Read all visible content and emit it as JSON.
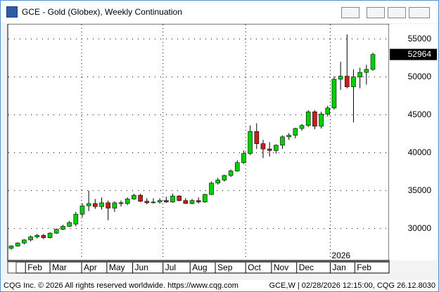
{
  "window_title": "GCE - Gold (Globex), Weekly Continuation",
  "footer": {
    "left": "CQG Inc. © 2026 All rights reserved worldwide. https://www.cqg.com",
    "right": "GCE,W | 02/28/2026 12:15:00, CQG 26.12.8030"
  },
  "chart_data": {
    "type": "candlestick",
    "categories": [
      null,
      null,
      null,
      null,
      null,
      null,
      null,
      null,
      null,
      null,
      null,
      null,
      null,
      null,
      null,
      null,
      null,
      null,
      null,
      null,
      null,
      null,
      null,
      null,
      null,
      null,
      null,
      null,
      null,
      null,
      null,
      null,
      null,
      null,
      null,
      null,
      null,
      null,
      null,
      null,
      null,
      null,
      null,
      null,
      null,
      null,
      null,
      null,
      null,
      null,
      null,
      null,
      null,
      null,
      null,
      null,
      null
    ],
    "open": [
      27400,
      27700,
      28100,
      28500,
      28900,
      29100,
      28800,
      29400,
      29900,
      30300,
      30600,
      31900,
      33000,
      33300,
      32900,
      33400,
      32700,
      33400,
      33300,
      33900,
      34400,
      33600,
      33400,
      33500,
      33700,
      33500,
      34300,
      33700,
      33300,
      33700,
      33500,
      34500,
      36000,
      36400,
      37000,
      37600,
      38700,
      39900,
      42800,
      41200,
      40500,
      40300,
      41000,
      42100,
      42300,
      43200,
      43600,
      45400,
      43500,
      45100,
      45900,
      49700,
      50100,
      48700,
      50000,
      50600,
      51000
    ],
    "high": [
      27800,
      28200,
      28600,
      29100,
      29300,
      29300,
      29500,
      30000,
      30500,
      31000,
      32200,
      33300,
      35000,
      33900,
      34100,
      33700,
      33600,
      33700,
      34100,
      34600,
      34600,
      34000,
      34000,
      34000,
      34200,
      34600,
      34400,
      34000,
      33900,
      34100,
      34600,
      36200,
      36700,
      37100,
      37800,
      39000,
      40300,
      43600,
      43900,
      41700,
      41400,
      41100,
      42300,
      42600,
      43300,
      43800,
      45600,
      45600,
      45400,
      46200,
      50100,
      52000,
      55600,
      51000,
      51200,
      51600,
      53200
    ],
    "low": [
      27200,
      27600,
      27900,
      28300,
      28700,
      28600,
      28700,
      29300,
      29800,
      30200,
      30300,
      31500,
      32300,
      32600,
      32500,
      31100,
      32200,
      32900,
      33100,
      33800,
      33500,
      33200,
      33300,
      33300,
      33400,
      33400,
      33600,
      33300,
      33200,
      33300,
      33400,
      34400,
      35800,
      36200,
      36800,
      37500,
      38500,
      39700,
      40500,
      39300,
      39500,
      39900,
      40500,
      41700,
      41900,
      42900,
      43400,
      43100,
      43200,
      44800,
      45700,
      48300,
      48500,
      44000,
      48500,
      49000,
      50800
    ],
    "close": [
      27700,
      28100,
      28500,
      28900,
      29100,
      28800,
      29400,
      29900,
      30300,
      30800,
      31900,
      33000,
      33300,
      32900,
      33400,
      32700,
      33400,
      33300,
      33900,
      34400,
      33600,
      33400,
      33500,
      33700,
      33500,
      34300,
      33700,
      33300,
      33700,
      33500,
      34500,
      36000,
      36400,
      37000,
      37600,
      38700,
      39900,
      42800,
      41200,
      40500,
      40300,
      41000,
      42100,
      42300,
      43200,
      43600,
      45400,
      43500,
      45100,
      45900,
      49700,
      50100,
      48700,
      50000,
      50600,
      51000,
      52964
    ],
    "up_color": "#00d000",
    "down_color": "#c81e1e",
    "ylim": [
      25800,
      57000
    ],
    "yticks": [
      30000,
      35000,
      40000,
      45000,
      50000,
      55000
    ],
    "grid": true,
    "xlabels": [
      {
        "value": 2.2,
        "label": "Feb"
      },
      {
        "value": 6.0,
        "label": "Mar"
      },
      {
        "value": 10.9,
        "label": "Apr"
      },
      {
        "value": 14.8,
        "label": "May"
      },
      {
        "value": 18.8,
        "label": "Jun"
      },
      {
        "value": 23.5,
        "label": "Jul"
      },
      {
        "value": 27.7,
        "label": "Aug"
      },
      {
        "value": 31.6,
        "label": "Sep"
      },
      {
        "value": 36.3,
        "label": "Oct"
      },
      {
        "value": 40.3,
        "label": "Nov"
      },
      {
        "value": 44.2,
        "label": "Dec"
      },
      {
        "value": 49.4,
        "label": "Jan"
      },
      {
        "value": 53.2,
        "label": "Feb"
      }
    ],
    "year_label": "2026"
  }
}
